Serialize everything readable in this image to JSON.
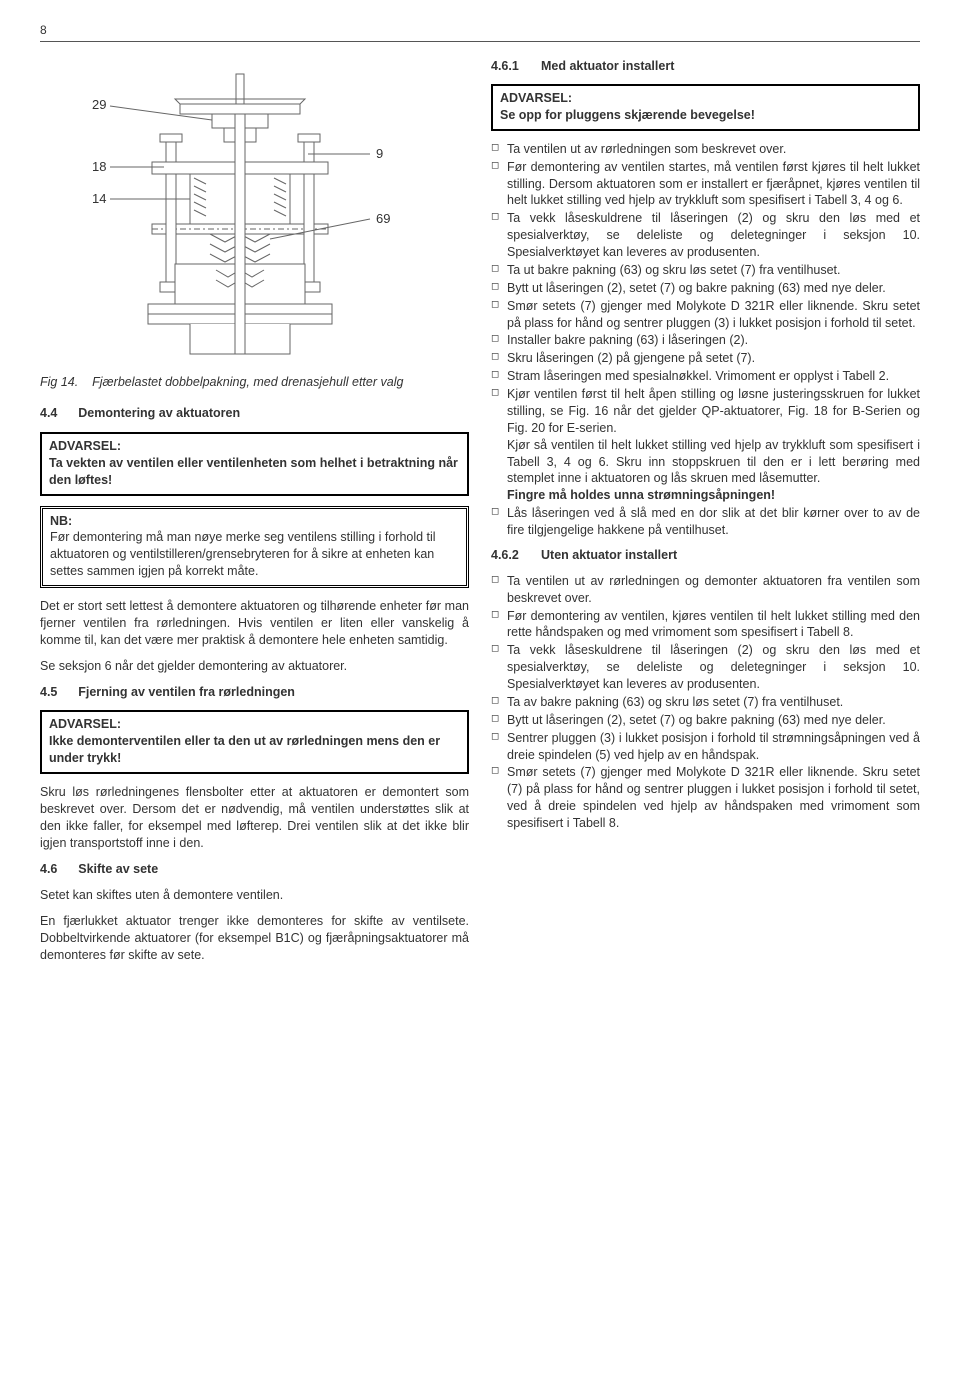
{
  "page_number": "8",
  "diagram": {
    "labels": {
      "l29": "29",
      "l18": "18",
      "l14": "14",
      "l9": "9",
      "l69": "69"
    },
    "stroke": "#555",
    "thin_stroke": "#888"
  },
  "fig_caption_label": "Fig 14.",
  "fig_caption_text": "Fjærbelastet dobbelpakning, med drenasjehull etter valg",
  "sec44_num": "4.4",
  "sec44_title": "Demontering av aktuatoren",
  "warn1_title": "ADVARSEL:",
  "warn1_body": "Ta vekten av ventilen eller ventilenheten som helhet i betraktning når den løftes!",
  "nb_title": "NB:",
  "nb_body": "Før demontering må man nøye merke seg ventilens stilling i forhold til aktuatoren og ventilstilleren/grensebryteren for å sikre at enheten kan settes sammen igjen på korrekt måte.",
  "para_after_nb_1": "Det er stort sett lettest å demontere aktuatoren og tilhørende enheter før man fjerner ventilen fra rørledningen. Hvis ventilen er liten eller vanskelig å komme til, kan det være mer praktisk å demontere hele enheten samtidig.",
  "para_after_nb_2": "Se seksjon 6 når det gjelder demontering av aktuatorer.",
  "sec45_num": "4.5",
  "sec45_title": "Fjerning av ventilen fra rørledningen",
  "warn2_title": "ADVARSEL:",
  "warn2_body": "Ikke demonterventilen eller ta den ut av rørledningen mens den er under trykk!",
  "para_45_1": "Skru løs rørledningenes flensbolter etter at aktuatoren er demontert som beskrevet over. Dersom det er nødvendig, må ventilen understøttes slik at den ikke faller, for eksempel med løfterep. Drei ventilen slik at det ikke blir igjen transportstoff inne i den.",
  "sec46_num": "4.6",
  "sec46_title": "Skifte av sete",
  "para_46_1": "Setet kan skiftes uten å demontere ventilen.",
  "para_46_2": "En fjærlukket aktuator trenger ikke demonteres for skifte av ventilsete. Dobbeltvirkende aktuatorer (for eksempel B1C) og fjæråpningsaktuatorer må demonteres før skifte av sete.",
  "sec461_num": "4.6.1",
  "sec461_title": "Med aktuator installert",
  "warn3_title": "ADVARSEL:",
  "warn3_body": "Se opp for pluggens skjærende bevegelse!",
  "bullets_461": [
    "Ta ventilen ut av rørledningen som beskrevet over.",
    "Før demontering av ventilen startes, må ventilen først kjøres til helt lukket stilling. Dersom aktuatoren som er installert er fjæråpnet, kjøres ventilen til helt lukket stilling ved hjelp av trykkluft som spesifisert i Tabell 3, 4 og 6.",
    "Ta vekk låseskuldrene til låseringen (2) og skru den løs med et spesialverktøy, se deleliste og deletegninger i seksjon 10. Spesialverktøyet kan leveres av produsenten.",
    "Ta ut bakre pakning (63) og skru løs setet (7) fra ventilhuset.",
    "Bytt ut låseringen (2), setet (7) og bakre pakning (63) med nye deler.",
    "Smør setets (7) gjenger med Molykote D 321R eller liknende. Skru setet på plass for hånd og sentrer pluggen (3) i lukket posisjon i forhold til setet.",
    "Installer bakre pakning (63) i låseringen (2).",
    "Skru låseringen (2) på gjengene på setet (7).",
    "Stram låseringen med spesialnøkkel. Vrimoment er opplyst i Tabell 2.",
    "Kjør ventilen først til helt åpen stilling og løsne justeringsskruen for lukket stilling, se Fig. 16 når det gjelder QP-aktuatorer, Fig. 18 for B-Serien og Fig. 20 for E-serien.\nKjør så ventilen til helt lukket stilling ved hjelp av trykkluft som spesifisert i Tabell 3, 4 og 6. Skru inn stoppskruen til den er i lett berøring med stemplet inne i aktuatoren og lås skruen med låsemutter.\n",
    "Lås låseringen ved å slå med en dor slik at det blir kørner over to av de fire tilgjengelige hakkene på ventilhuset."
  ],
  "fingre_line": "Fingre må holdes unna strømningsåpningen!",
  "sec462_num": "4.6.2",
  "sec462_title": "Uten aktuator installert",
  "bullets_462": [
    "Ta ventilen ut av rørledningen og demonter aktuatoren fra ventilen som beskrevet over.",
    "Før demontering av ventilen, kjøres ventilen til helt lukket stilling med den rette håndspaken og med vrimoment som spesifisert i Tabell 8.",
    "Ta vekk låseskuldrene til låseringen (2) og skru den løs med et spesialverktøy, se deleliste og deletegninger i seksjon 10. Spesialverktøyet kan leveres av produsenten.",
    "Ta av bakre pakning (63) og skru løs setet (7) fra ventilhuset.",
    "Bytt ut låseringen (2), setet (7) og bakre pakning (63) med nye deler.",
    "Sentrer pluggen (3) i lukket posisjon i forhold til strømningsåpningen ved å dreie spindelen (5) ved hjelp av en håndspak.",
    "Smør setets (7) gjenger med Molykote D 321R eller liknende. Skru setet (7) på plass for hånd og sentrer pluggen i lukket posisjon i forhold til setet, ved å dreie spindelen ved hjelp av håndspaken med vrimoment som spesifisert i Tabell 8."
  ]
}
